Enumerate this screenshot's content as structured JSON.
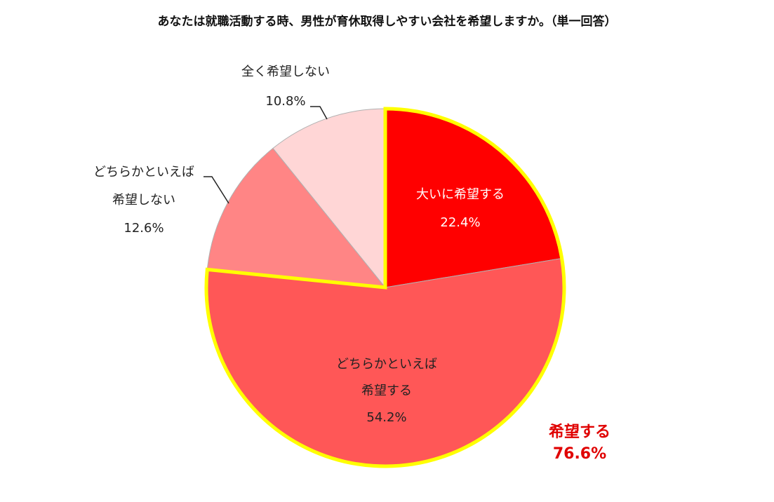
{
  "chart_data": {
    "type": "pie",
    "title": "あなたは就職活動する時、男性が育休取得しやすい会社を希望しますか。（単一回答）",
    "categories": [
      "大いに希望する",
      "どちらかといえば\n希望する",
      "どちらかといえば\n希望しない",
      "全く希望しない"
    ],
    "values": [
      22.4,
      54.2,
      12.6,
      10.8
    ],
    "value_labels": [
      "22.4%",
      "54.2%",
      "12.6%",
      "10.8%"
    ],
    "colors": [
      "#ff0000",
      "#ff5757",
      "#ff8585",
      "#ffd6d6"
    ],
    "annotation": {
      "text": "希望する",
      "value": 76.6,
      "value_label": "76.6%",
      "color": "#e00000",
      "outline_color": "#ffff00"
    }
  }
}
